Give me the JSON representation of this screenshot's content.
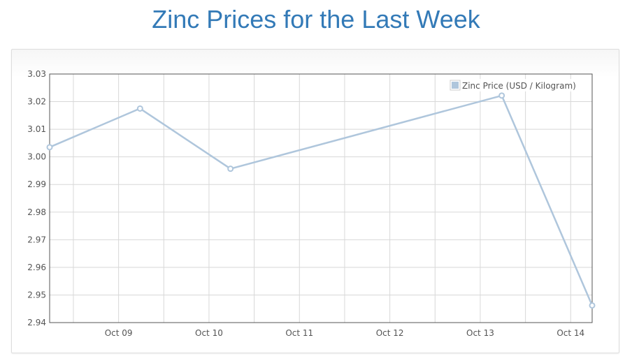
{
  "page": {
    "title": "Zinc Prices for the Last Week"
  },
  "colors": {
    "title": "#337ab7",
    "series": "#afc6dc",
    "grid": "#d8d8d8",
    "axis": "#545454"
  },
  "chart_data": {
    "type": "line",
    "title": "",
    "xlabel": "",
    "ylabel": "",
    "x_tick_labels": [
      "Oct 09",
      "Oct 10",
      "Oct 11",
      "Oct 12",
      "Oct 13",
      "Oct 14"
    ],
    "y_tick_labels": [
      "2.94",
      "2.95",
      "2.96",
      "2.97",
      "2.98",
      "2.99",
      "3.00",
      "3.01",
      "3.02",
      "3.03"
    ],
    "ylim": [
      2.94,
      3.03
    ],
    "xlim": [
      "Oct 08 17:42",
      "Oct 14 17:42"
    ],
    "grid": true,
    "legend_position": "top-right",
    "series": [
      {
        "name": "Zinc Price (USD / Kilogram)",
        "x": [
          "Oct 08 17:42",
          "Oct 09 17:42",
          "Oct 10 17:42",
          "Oct 13 17:42",
          "Oct 14 17:42"
        ],
        "values": [
          3.0035,
          3.0175,
          2.9957,
          3.0222,
          2.9462
        ]
      }
    ]
  }
}
